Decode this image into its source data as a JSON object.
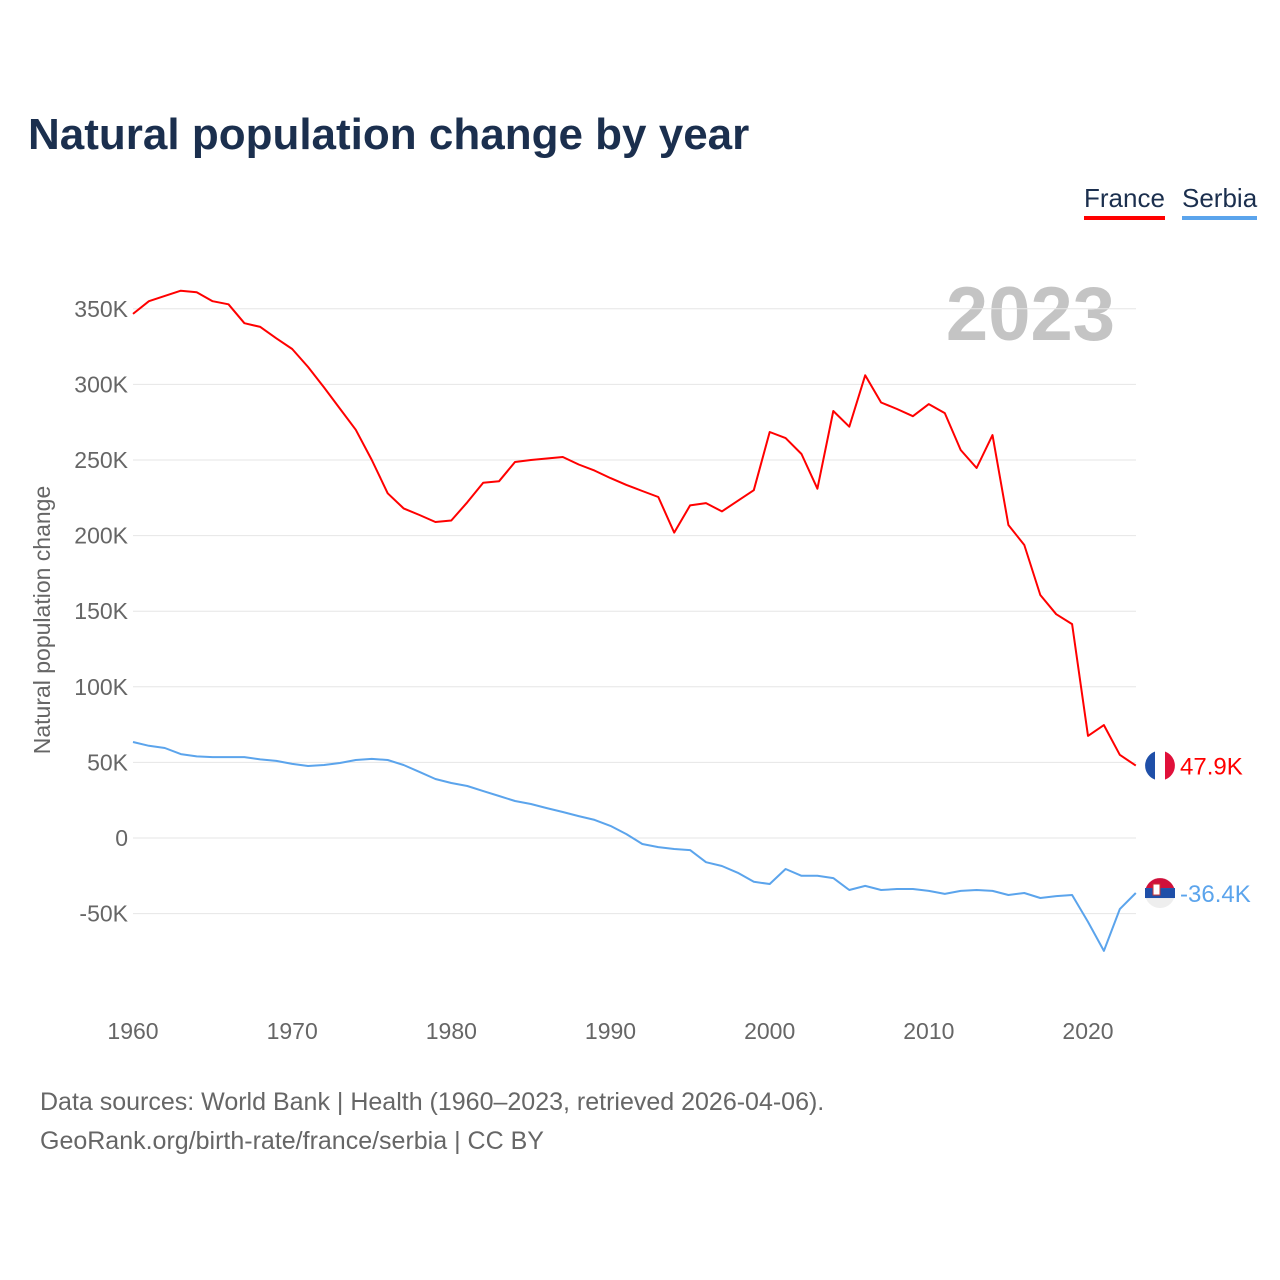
{
  "title": "Natural population change by year",
  "legend": [
    "France",
    "Serbia"
  ],
  "sources": [
    "Data sources: World Bank | Health (1960–2023, retrieved 2026-04-06).",
    "GeoRank.org/birth-rate/france/serbia | CC BY"
  ],
  "chart_data": {
    "type": "line",
    "title": "Natural population change by year",
    "ylabel": "Natural population change",
    "xlabel": "",
    "year_watermark": "2023",
    "ylim": [
      -100000,
      375000
    ],
    "xlim": [
      1960,
      2023
    ],
    "yticks": [
      -50000,
      0,
      50000,
      100000,
      150000,
      200000,
      250000,
      300000,
      350000
    ],
    "ytick_labels": [
      "-50K",
      "0",
      "50K",
      "100K",
      "150K",
      "200K",
      "250K",
      "300K",
      "350K"
    ],
    "xticks": [
      1960,
      1970,
      1980,
      1990,
      2000,
      2010,
      2020
    ],
    "grid": true,
    "legend_position": "top-right",
    "x_start": 1960,
    "units": "thousands",
    "series": [
      {
        "name": "France",
        "color": "#ff0000",
        "end_label": "47.9K",
        "values": [
          346.6,
          355,
          358.5,
          362,
          361,
          355,
          353,
          340.5,
          338,
          330.5,
          323.4,
          311.5,
          298,
          284,
          270,
          250,
          228,
          218,
          213.6,
          209,
          210,
          222,
          235,
          236,
          248.7,
          250,
          251,
          252,
          247,
          243,
          238,
          233.5,
          229.5,
          225.5,
          202,
          220,
          221.5,
          216,
          223,
          230,
          268.5,
          264.5,
          254,
          231,
          282.4,
          272,
          306,
          288,
          283.7,
          279,
          287,
          281,
          256.6,
          244.7,
          266.5,
          207,
          193.8,
          160.7,
          148,
          141.5,
          67.5,
          74.7,
          55,
          47.9
        ]
      },
      {
        "name": "Serbia",
        "color": "#5ba4ec",
        "end_label": "-36.4K",
        "values": [
          63.5,
          61,
          59.5,
          55.5,
          54,
          53.5,
          53.5,
          53.5,
          52,
          51,
          49,
          47.6,
          48.3,
          49.6,
          51.6,
          52.3,
          51.6,
          48.3,
          43.7,
          39,
          36.4,
          34.4,
          31,
          27.8,
          24.5,
          22.5,
          19.8,
          17.2,
          14.5,
          12,
          8,
          2.6,
          -4,
          -6,
          -7.3,
          -8,
          -16,
          -18.5,
          -23,
          -29,
          -30.4,
          -20.5,
          -25,
          -25,
          -26.5,
          -34.4,
          -31.7,
          -34.4,
          -33.7,
          -33.7,
          -35,
          -37,
          -35,
          -34.4,
          -35,
          -37.7,
          -36.4,
          -39.7,
          -38.4,
          -37.7,
          -55.5,
          -74.7,
          -47,
          -36.4
        ]
      }
    ]
  }
}
